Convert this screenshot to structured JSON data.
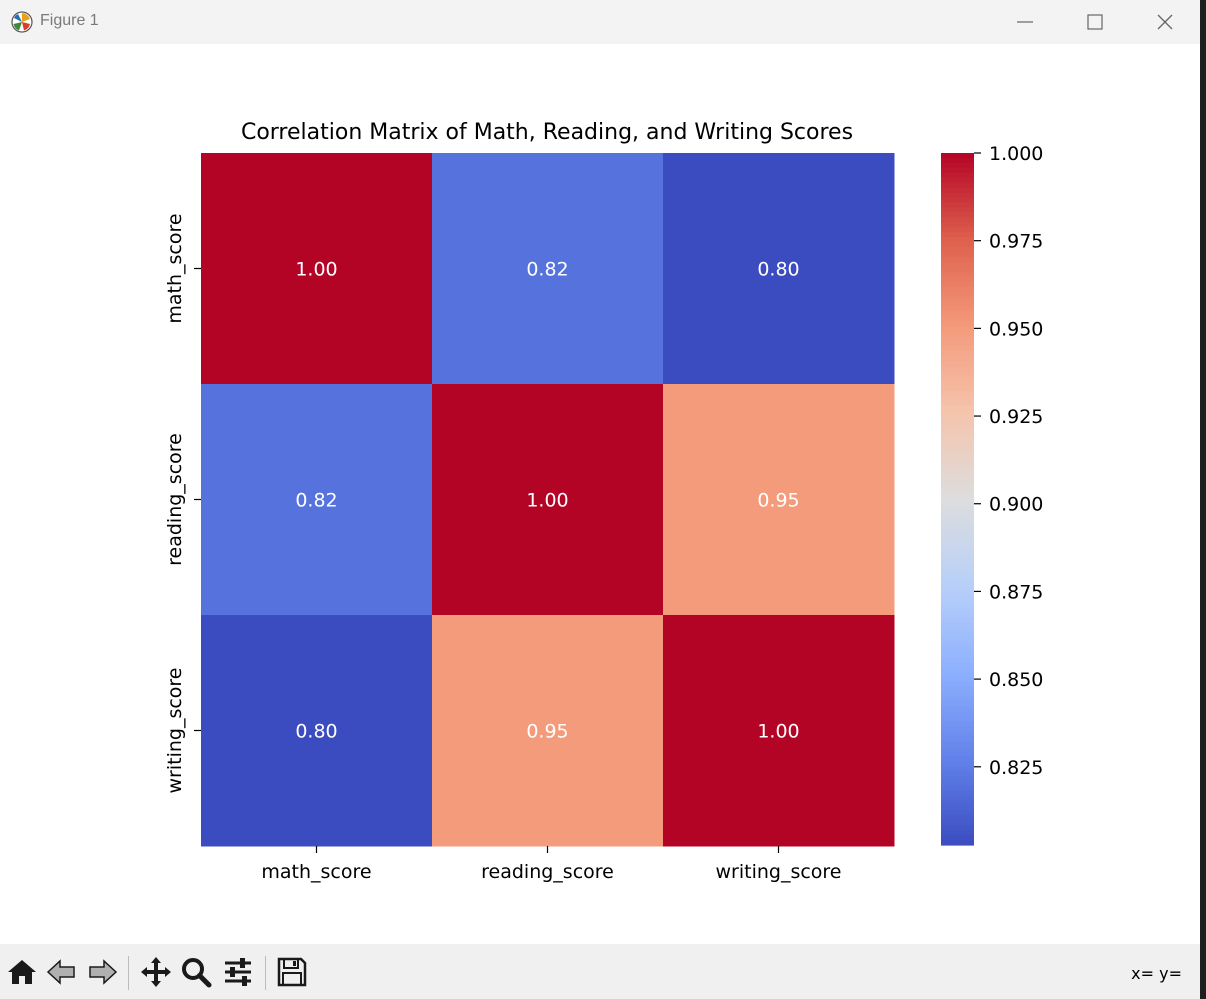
{
  "window": {
    "title": "Figure 1",
    "icons": [
      "matplotlib-logo-icon",
      "minimize-icon",
      "maximize-icon",
      "close-icon"
    ]
  },
  "chart_data": {
    "type": "heatmap",
    "title": "Correlation Matrix of Math, Reading, and Writing Scores",
    "x_labels": [
      "math_score",
      "reading_score",
      "writing_score"
    ],
    "y_labels": [
      "math_score",
      "reading_score",
      "writing_score"
    ],
    "values": [
      [
        1.0,
        0.82,
        0.8
      ],
      [
        0.82,
        1.0,
        0.95
      ],
      [
        0.8,
        0.95,
        1.0
      ]
    ],
    "cell_labels": [
      [
        "1.00",
        "0.82",
        "0.80"
      ],
      [
        "0.82",
        "1.00",
        "0.95"
      ],
      [
        "0.80",
        "0.95",
        "1.00"
      ]
    ],
    "colormap": "coolwarm",
    "colorbar": {
      "vmin": 0.8027,
      "vmax": 1.0,
      "ticks": [
        0.825,
        0.85,
        0.875,
        0.9,
        0.925,
        0.95,
        0.975,
        1.0
      ],
      "tick_labels": [
        "0.825",
        "0.850",
        "0.875",
        "0.900",
        "0.925",
        "0.950",
        "0.975",
        "1.000"
      ],
      "location": "right"
    },
    "grid": false
  },
  "toolbar": {
    "tools": [
      {
        "name": "home-icon",
        "label": "Home"
      },
      {
        "name": "back-icon",
        "label": "Back"
      },
      {
        "name": "forward-icon",
        "label": "Forward"
      },
      {
        "name": "pan-icon",
        "label": "Pan"
      },
      {
        "name": "zoom-icon",
        "label": "Zoom"
      },
      {
        "name": "configure-subplots-icon",
        "label": "Configure subplots"
      },
      {
        "name": "save-icon",
        "label": "Save"
      }
    ],
    "coords": "x= y="
  }
}
